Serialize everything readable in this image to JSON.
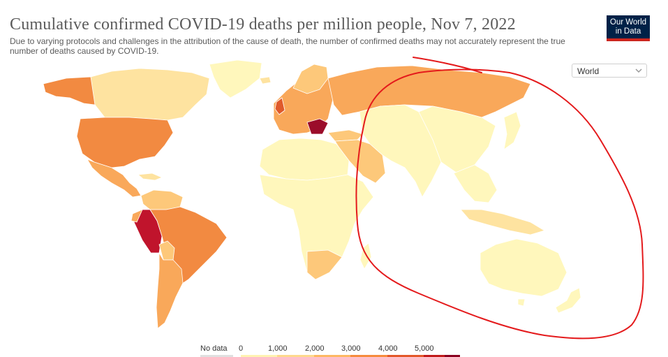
{
  "header": {
    "title": "Cumulative confirmed COVID-19 deaths per million people, Nov 7, 2022",
    "subtitle": "Due to varying protocols and challenges in the attribution of the cause of death, the number of confirmed deaths may not accurately represent the true number of deaths caused by COVID-19."
  },
  "logo": {
    "line1": "Our World",
    "line2": "in Data"
  },
  "region_select": {
    "value": "World",
    "icon": "chevron-down-icon"
  },
  "legend": {
    "no_data_label": "No data",
    "ticks": [
      "0",
      "1,000",
      "2,000",
      "3,000",
      "4,000",
      "5,000"
    ],
    "colors": [
      "#fff2b2",
      "#fed98e",
      "#fdb863",
      "#f68c3e",
      "#e3582a",
      "#c11b1b",
      "#8b0020"
    ]
  },
  "colors": {
    "very_low": "#fff7bc",
    "low": "#fee3a0",
    "mid_low": "#fdc87a",
    "mid": "#f9a85a",
    "mid_high": "#f28a41",
    "high": "#e05a2b",
    "very_high": "#c0142c",
    "highest": "#9b0d2a",
    "annotation": "#e41a1c",
    "border": "#ffffff"
  }
}
